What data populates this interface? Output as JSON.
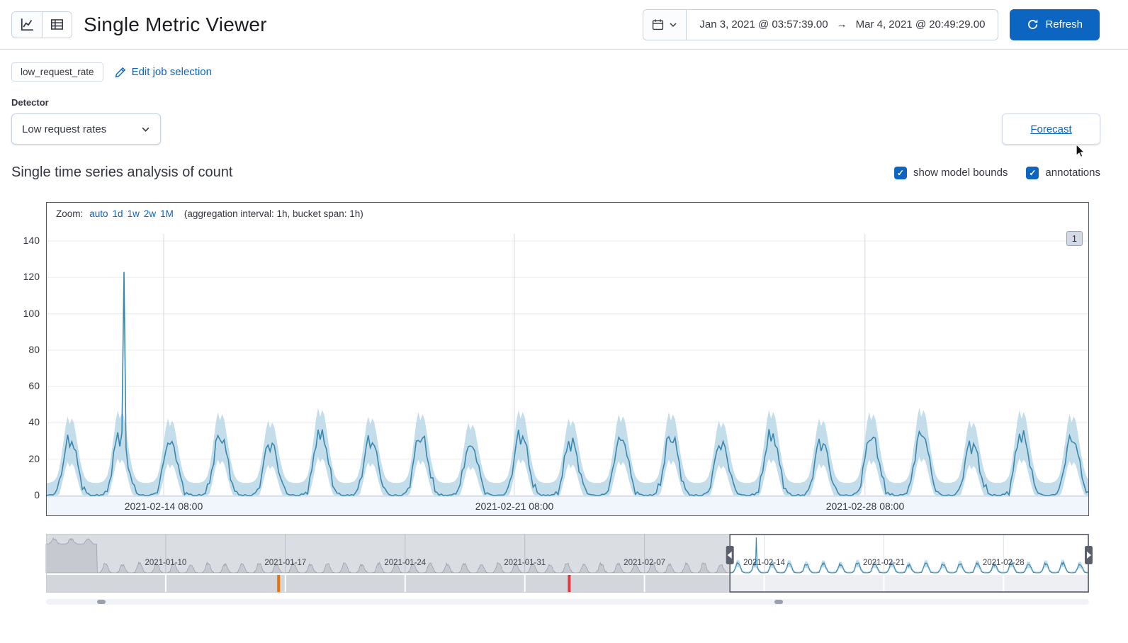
{
  "colors": {
    "accent": "#0d65c2",
    "link": "#0b64c2",
    "line": "#3a87ad",
    "band": "#afd3e3",
    "warning_marker": "#e8710a",
    "critical_marker": "#e5383f"
  },
  "header": {
    "title": "Single Metric Viewer",
    "refresh_label": "Refresh",
    "date_picker": {
      "start": "Jan 3, 2021 @ 03:57:39.00",
      "separator": "→",
      "end": "Mar 4, 2021 @ 20:49:29.00"
    }
  },
  "job_bar": {
    "job_badge": "low_request_rate",
    "edit_link": "Edit job selection"
  },
  "detector": {
    "label": "Detector",
    "selected_option": "Low request rates"
  },
  "forecast_button": "Forecast",
  "series_section": {
    "title": "Single time series analysis of count",
    "checkboxes": [
      {
        "label": "show model bounds",
        "checked": true
      },
      {
        "label": "annotations",
        "checked": true
      }
    ]
  },
  "zoom_bar": {
    "label": "Zoom:",
    "options": [
      "auto",
      "1d",
      "1w",
      "2w",
      "1M"
    ],
    "aggregation_note": "(aggregation interval: 1h, bucket span: 1h)"
  },
  "chart_data": {
    "type": "line",
    "title": "Single time series analysis of count",
    "series_name": "count",
    "main_chart": {
      "y_ticks": [
        0,
        20,
        40,
        60,
        80,
        100,
        120,
        140
      ],
      "x_tick_labels": [
        "2021-02-14 08:00",
        "2021-02-21 08:00",
        "2021-02-28 08:00"
      ],
      "x_tick_hours": [
        56,
        224,
        392
      ],
      "x_domain": [
        "2021-02-12 00:00",
        "2021-03-04 19:00"
      ],
      "hours": 499,
      "daily_profile": [
        0,
        0,
        0.01,
        0.02,
        0.05,
        0.1,
        0.22,
        0.4,
        0.62,
        0.85,
        1.0,
        0.88,
        0.97,
        0.9,
        0.72,
        0.52,
        0.34,
        0.2,
        0.1,
        0.05,
        0.02,
        0.01,
        0,
        0
      ],
      "daily_peaks": [
        31,
        34,
        30,
        33,
        29,
        35,
        31,
        33,
        28,
        34,
        30,
        32,
        33,
        29,
        34,
        30,
        33,
        35,
        29,
        34,
        32
      ],
      "noise_amplitude": 3.2,
      "spike": {
        "hour": 37,
        "value": 123,
        "time": "2021-02-13 13:00"
      },
      "model_bounds": {
        "upper_scale": 1.18,
        "upper_offset": 7,
        "lower_scale": 0.72,
        "lower_offset": 4
      },
      "annotation_badge": "1"
    },
    "context_chart": {
      "x_domain": [
        "2021-01-03",
        "2021-03-04"
      ],
      "days": 61,
      "week_tick_days": [
        7,
        14,
        21,
        28,
        35,
        42,
        49,
        56
      ],
      "week_tick_labels": [
        "2021-01-10",
        "2021-01-17",
        "2021-01-24",
        "2021-01-31",
        "2021-02-07",
        "2021-02-14",
        "2021-02-21",
        "2021-02-28"
      ],
      "selection_start_day": 40,
      "selection_end_day": 61,
      "start_plateau": {
        "days": 2.7,
        "base": 100,
        "amp": 18
      },
      "spike": {
        "day": 41,
        "hour": 13,
        "value": 123
      },
      "annotation_markers": [
        {
          "day": 13.6,
          "severity": "warning",
          "color": "#e8710a"
        },
        {
          "day": 30.6,
          "severity": "critical",
          "color": "#e5383f"
        }
      ]
    }
  }
}
